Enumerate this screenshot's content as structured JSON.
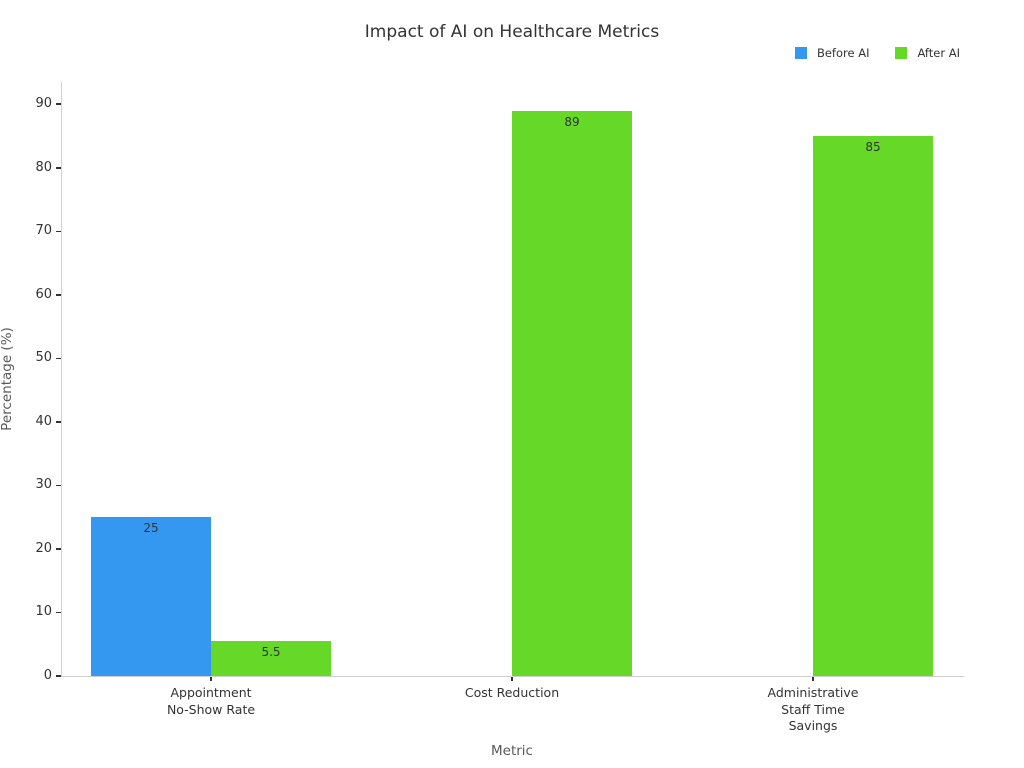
{
  "title": "Impact of AI on Healthcare Metrics",
  "legend": {
    "items": [
      {
        "label": "Before AI",
        "color": "#3498F0"
      },
      {
        "label": "After AI",
        "color": "#66D928"
      }
    ]
  },
  "axes": {
    "xlabel": "Metric",
    "ylabel": "Percentage (%)",
    "yticks": [
      0,
      10,
      20,
      30,
      40,
      50,
      60,
      70,
      80,
      90
    ]
  },
  "chart_data": {
    "type": "bar",
    "title": "Impact of AI on Healthcare Metrics",
    "xlabel": "Metric",
    "ylabel": "Percentage (%)",
    "categories": [
      "Appointment No-Show Rate",
      "Cost Reduction",
      "Administrative Staff Time Savings"
    ],
    "category_label_lines": [
      [
        "Appointment",
        "No-Show Rate"
      ],
      [
        "Cost Reduction"
      ],
      [
        "Administrative",
        "Staff Time",
        "Savings"
      ]
    ],
    "series": [
      {
        "name": "Before AI",
        "color": "#3498F0",
        "values": [
          25,
          null,
          null
        ]
      },
      {
        "name": "After AI",
        "color": "#66D928",
        "values": [
          5.5,
          89,
          85
        ]
      }
    ],
    "bar_value_labels": [
      "25",
      "5.5",
      "89",
      "85"
    ],
    "ylim": [
      0,
      93.5
    ],
    "grid": false,
    "legend_position": "top-right"
  }
}
